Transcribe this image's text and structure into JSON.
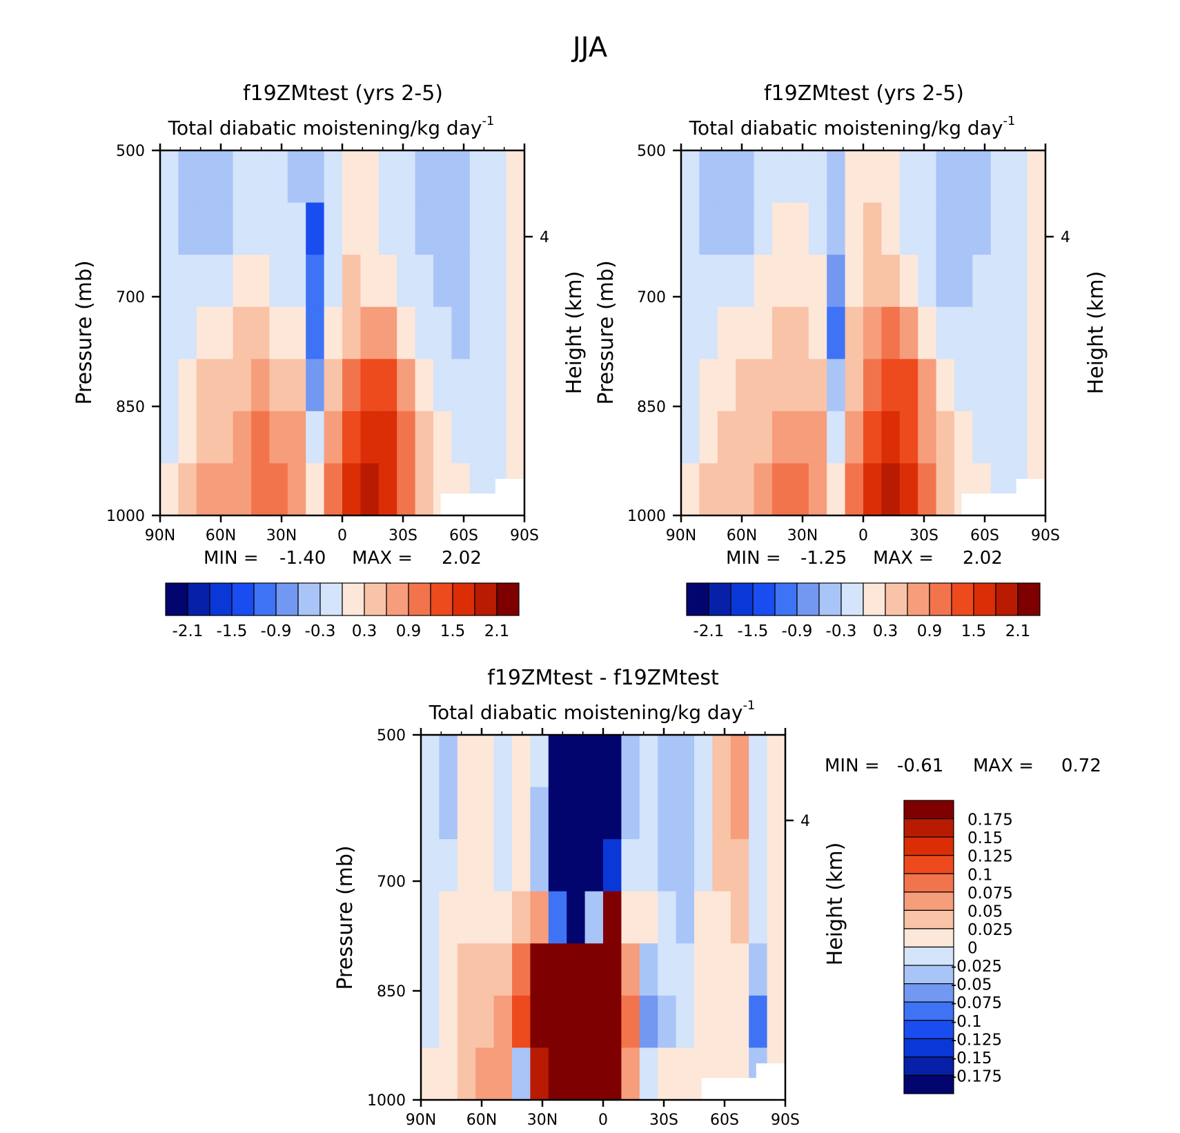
{
  "figure": {
    "title": "JJA"
  },
  "palette": {
    "main": [
      "#03056e",
      "#0620a8",
      "#0a38d6",
      "#1a4df0",
      "#3f73f5",
      "#7298f2",
      "#a9c4f7",
      "#d3e4fb",
      "#fde7d9",
      "#f9c3a7",
      "#f69d7b",
      "#f2744d",
      "#ed4a1d",
      "#db2e07",
      "#b81b02",
      "#7f0000"
    ],
    "diff": [
      "#03056e",
      "#0620a8",
      "#0a38d6",
      "#1a4df0",
      "#3f73f5",
      "#7298f2",
      "#a9c4f7",
      "#d3e4fb",
      "#fde7d9",
      "#f9c3a7",
      "#f69d7b",
      "#f2744d",
      "#ed4a1d",
      "#db2e07",
      "#b81b02",
      "#7f0000"
    ]
  },
  "chart_data": [
    {
      "type": "heatmap",
      "id": "panel1",
      "title": "f19ZMtest (yrs 2-5)",
      "subtitle": "Total diabatic moistening/kg day",
      "subtitle_exp": "-1",
      "ylabel": "Pressure (mb)",
      "ylabel_right": "Height (km)",
      "right_ticks": [
        "4"
      ],
      "yticks": [
        "500",
        "700",
        "850",
        "1000"
      ],
      "xticks": [
        "90N",
        "60N",
        "30N",
        "0",
        "30S",
        "60S",
        "90S"
      ],
      "stats": {
        "min_label": "MIN =",
        "min": "-1.40",
        "max_label": "MAX =",
        "max": "2.02"
      },
      "colorbar_labels": [
        "-2.1",
        "-1.5",
        "-0.9",
        "-0.3",
        "0.3",
        "0.9",
        "1.5",
        "2.1"
      ],
      "levels": [
        -2.1,
        -1.8,
        -1.5,
        -1.2,
        -0.9,
        -0.6,
        -0.3,
        0,
        0.3,
        0.6,
        0.9,
        1.2,
        1.5,
        1.8,
        2.1
      ],
      "approx_grid_note": "coarse digitised field, rows 500 to 1000 mb, columns 90N to 90S",
      "grid": [
        [
          -0.1,
          -0.4,
          -0.5,
          -0.4,
          -0.2,
          -0.3,
          -0.1,
          -0.4,
          -0.6,
          -0.2,
          0.1,
          0.2,
          -0.1,
          -0.2,
          -0.4,
          -0.5,
          -0.4,
          -0.3,
          -0.2,
          0
        ],
        [
          -0.1,
          -0.4,
          -0.5,
          -0.4,
          -0.2,
          -0.3,
          -0.1,
          -0.3,
          -1.4,
          -0.2,
          0.2,
          0.2,
          -0.1,
          -0.2,
          -0.4,
          -0.5,
          -0.4,
          -0.3,
          -0.2,
          0
        ],
        [
          -0.1,
          -0.2,
          -0.3,
          -0.3,
          0.1,
          0.2,
          -0.1,
          -0.2,
          -1.2,
          -0.1,
          0.3,
          0.2,
          0.1,
          -0.1,
          -0.3,
          -0.4,
          -0.4,
          -0.3,
          -0.2,
          0
        ],
        [
          -0.1,
          -0.1,
          0.1,
          0.2,
          0.3,
          0.3,
          0.2,
          0.1,
          -1.1,
          0.1,
          0.4,
          0.7,
          0.6,
          0.2,
          -0.1,
          -0.3,
          -0.4,
          -0.3,
          -0.2,
          0
        ],
        [
          -0.1,
          0.1,
          0.3,
          0.3,
          0.5,
          0.6,
          0.4,
          0.3,
          -0.8,
          0.3,
          0.9,
          1.3,
          1.2,
          0.6,
          0.2,
          -0.2,
          -0.3,
          -0.3,
          -0.2,
          0
        ],
        [
          -0.1,
          0.2,
          0.4,
          0.4,
          0.6,
          0.9,
          0.8,
          0.6,
          -0.3,
          0.6,
          1.2,
          1.6,
          1.5,
          0.9,
          0.4,
          0.1,
          -0.2,
          -0.3,
          -0.2,
          0
        ],
        [
          0,
          0.3,
          0.6,
          0.6,
          0.8,
          1.1,
          1.0,
          0.8,
          0.1,
          0.9,
          1.5,
          1.9,
          1.6,
          1.0,
          0.5,
          0.2,
          0.1,
          -0.1,
          -0.1,
          0
        ]
      ]
    },
    {
      "type": "heatmap",
      "id": "panel2",
      "title": "f19ZMtest (yrs 2-5)",
      "subtitle": "Total diabatic moistening/kg day",
      "subtitle_exp": "-1",
      "ylabel": "Pressure (mb)",
      "ylabel_right": "Height (km)",
      "right_ticks": [
        "4"
      ],
      "yticks": [
        "500",
        "700",
        "850",
        "1000"
      ],
      "xticks": [
        "90N",
        "60N",
        "30N",
        "0",
        "30S",
        "60S",
        "90S"
      ],
      "stats": {
        "min_label": "MIN =",
        "min": "-1.25",
        "max_label": "MAX =",
        "max": "2.02"
      },
      "colorbar_labels": [
        "-2.1",
        "-1.5",
        "-0.9",
        "-0.3",
        "0.3",
        "0.9",
        "1.5",
        "2.1"
      ],
      "levels": [
        -2.1,
        -1.8,
        -1.5,
        -1.2,
        -0.9,
        -0.6,
        -0.3,
        0,
        0.3,
        0.6,
        0.9,
        1.2,
        1.5,
        1.8,
        2.1
      ],
      "approx_grid_note": "coarse digitised field, rows 500 to 1000 mb, columns 90N to 90S",
      "grid": [
        [
          -0.1,
          -0.4,
          -0.5,
          -0.4,
          -0.2,
          -0.2,
          -0.1,
          -0.2,
          -0.4,
          0.1,
          0.2,
          0.1,
          -0.1,
          -0.3,
          -0.5,
          -0.5,
          -0.4,
          -0.3,
          -0.2,
          0
        ],
        [
          -0.1,
          -0.4,
          -0.5,
          -0.4,
          -0.1,
          0.1,
          0.1,
          -0.1,
          -0.6,
          0.1,
          0.3,
          0.2,
          -0.1,
          -0.3,
          -0.5,
          -0.5,
          -0.4,
          -0.3,
          -0.2,
          0
        ],
        [
          -0.1,
          -0.2,
          -0.3,
          -0.2,
          0.1,
          0.2,
          0.1,
          0.1,
          -0.9,
          0.2,
          0.4,
          0.4,
          0.1,
          -0.2,
          -0.4,
          -0.4,
          -0.3,
          -0.3,
          -0.2,
          0
        ],
        [
          -0.1,
          -0.1,
          0.1,
          0.2,
          0.2,
          0.3,
          0.3,
          0.2,
          -1.1,
          0.3,
          0.7,
          0.9,
          0.6,
          0.2,
          -0.2,
          -0.3,
          -0.3,
          -0.2,
          -0.2,
          0
        ],
        [
          -0.1,
          0.1,
          0.2,
          0.3,
          0.4,
          0.5,
          0.5,
          0.4,
          -0.6,
          0.4,
          1.1,
          1.4,
          1.2,
          0.6,
          0.2,
          -0.2,
          -0.3,
          -0.2,
          -0.2,
          0
        ],
        [
          -0.1,
          0.2,
          0.3,
          0.4,
          0.5,
          0.7,
          0.8,
          0.6,
          -0.2,
          0.7,
          1.3,
          1.7,
          1.4,
          0.8,
          0.3,
          0.1,
          -0.2,
          -0.2,
          -0.1,
          0
        ],
        [
          0,
          0.3,
          0.5,
          0.5,
          0.7,
          0.9,
          0.9,
          0.7,
          0.1,
          0.9,
          1.5,
          1.9,
          1.6,
          1.0,
          0.5,
          0.2,
          0.1,
          -0.1,
          -0.1,
          0
        ]
      ]
    },
    {
      "type": "heatmap",
      "id": "panel3",
      "title": "f19ZMtest - f19ZMtest",
      "subtitle": "Total diabatic moistening/kg day",
      "subtitle_exp": "-1",
      "ylabel": "Pressure (mb)",
      "ylabel_right": "Height (km)",
      "right_ticks": [
        "4"
      ],
      "yticks": [
        "500",
        "700",
        "850",
        "1000"
      ],
      "xticks": [
        "90N",
        "60N",
        "30N",
        "0",
        "30S",
        "60S",
        "90S"
      ],
      "stats": {
        "min_label": "MIN =",
        "min": "-0.61",
        "max_label": "MAX =",
        "max": "0.72"
      },
      "colorbar_labels": [
        "0.175",
        "0.15",
        "0.125",
        "0.1",
        "0.075",
        "0.05",
        "0.025",
        "0",
        "-0.025",
        "-0.05",
        "-0.075",
        "-0.1",
        "-0.125",
        "-0.15",
        "-0.175"
      ],
      "levels": [
        -0.175,
        -0.15,
        -0.125,
        -0.1,
        -0.075,
        -0.05,
        -0.025,
        0,
        0.025,
        0.05,
        0.075,
        0.1,
        0.125,
        0.15,
        0.175
      ],
      "approx_grid_note": "coarse digitised field, rows 500 to 1000 mb, columns 90N to 90S",
      "grid": [
        [
          -0.01,
          -0.03,
          0.02,
          0.01,
          -0.02,
          0.01,
          -0.02,
          -0.2,
          -0.3,
          -0.3,
          -0.2,
          -0.03,
          -0.02,
          -0.04,
          -0.03,
          -0.02,
          0.04,
          0.05,
          -0.02,
          0.01
        ],
        [
          -0.01,
          -0.03,
          0.01,
          0.01,
          -0.02,
          0.01,
          -0.03,
          -0.2,
          -0.3,
          -0.3,
          -0.2,
          -0.03,
          -0.02,
          -0.04,
          -0.03,
          -0.02,
          0.04,
          0.05,
          -0.02,
          0.01
        ],
        [
          -0.02,
          -0.02,
          0.01,
          0.02,
          -0.01,
          0.02,
          -0.04,
          -0.2,
          -0.3,
          -0.3,
          -0.15,
          -0.02,
          -0.01,
          -0.03,
          -0.04,
          -0.01,
          0.03,
          0.04,
          -0.01,
          0.01
        ],
        [
          -0.02,
          0.01,
          0.02,
          0.02,
          0.01,
          0.03,
          0.05,
          -0.1,
          -0.25,
          -0.05,
          0.2,
          0.02,
          0.01,
          -0.02,
          -0.03,
          0.01,
          0.02,
          0.03,
          -0.02,
          0.01
        ],
        [
          -0.01,
          0.02,
          0.03,
          0.03,
          0.04,
          0.08,
          0.3,
          0.4,
          0.3,
          0.4,
          0.3,
          0.05,
          -0.04,
          -0.02,
          -0.02,
          0.01,
          0.02,
          0.02,
          -0.05,
          0
        ],
        [
          -0.01,
          0.02,
          0.03,
          0.04,
          0.05,
          0.1,
          0.2,
          0.4,
          0.5,
          0.45,
          0.35,
          0.08,
          -0.06,
          -0.04,
          -0.02,
          0.02,
          0.02,
          0.01,
          -0.08,
          0
        ],
        [
          0.01,
          0.02,
          0.03,
          0.05,
          0.06,
          -0.05,
          0.15,
          0.3,
          0.4,
          0.4,
          0.2,
          0.05,
          -0.02,
          0.02,
          0.02,
          0.02,
          0.01,
          0.01,
          -0.05,
          0
        ]
      ]
    }
  ]
}
